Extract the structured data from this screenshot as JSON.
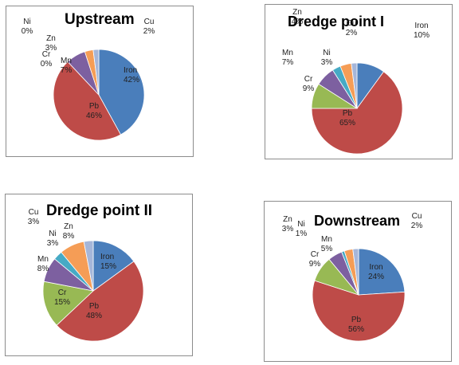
{
  "chart_data": [
    {
      "type": "pie",
      "title": "Upstream",
      "categories": [
        "Iron",
        "Pb",
        "Cr",
        "Mn",
        "Zn",
        "Ni",
        "Cu"
      ],
      "values": [
        42,
        46,
        0,
        7,
        3,
        0,
        2
      ],
      "labels": [
        "42%",
        "46%",
        "0%",
        "7%",
        "3%",
        "0%",
        "2%"
      ]
    },
    {
      "type": "pie",
      "title": "Dredge point I",
      "categories": [
        "Iron",
        "Pb",
        "Cr",
        "Mn",
        "Ni",
        "Zn",
        "Cu"
      ],
      "values": [
        10,
        65,
        9,
        7,
        3,
        4,
        2
      ],
      "labels": [
        "10%",
        "65%",
        "9%",
        "7%",
        "3%",
        "4%",
        "2%"
      ]
    },
    {
      "type": "pie",
      "title": "Dredge point II",
      "categories": [
        "Iron",
        "Pb",
        "Cr",
        "Mn",
        "Ni",
        "Zn",
        "Cu"
      ],
      "values": [
        15,
        48,
        15,
        8,
        3,
        8,
        3
      ],
      "labels": [
        "15%",
        "48%",
        "15%",
        "8%",
        "3%",
        "8%",
        "3%"
      ]
    },
    {
      "type": "pie",
      "title": "Downstream",
      "categories": [
        "Iron",
        "Pb",
        "Cr",
        "Mn",
        "Ni",
        "Zn",
        "Cu"
      ],
      "values": [
        24,
        56,
        9,
        5,
        1,
        3,
        2
      ],
      "labels": [
        "24%",
        "56%",
        "9%",
        "5%",
        "1%",
        "3%",
        "2%"
      ]
    }
  ],
  "colors": {
    "Iron": "#4a7ebb",
    "Pb": "#be4b48",
    "Cr": "#98b954",
    "Mn": "#7d60a0",
    "Zn": "#f59d56",
    "Ni": "#46aac5",
    "Cu": "#a5b6d9"
  }
}
